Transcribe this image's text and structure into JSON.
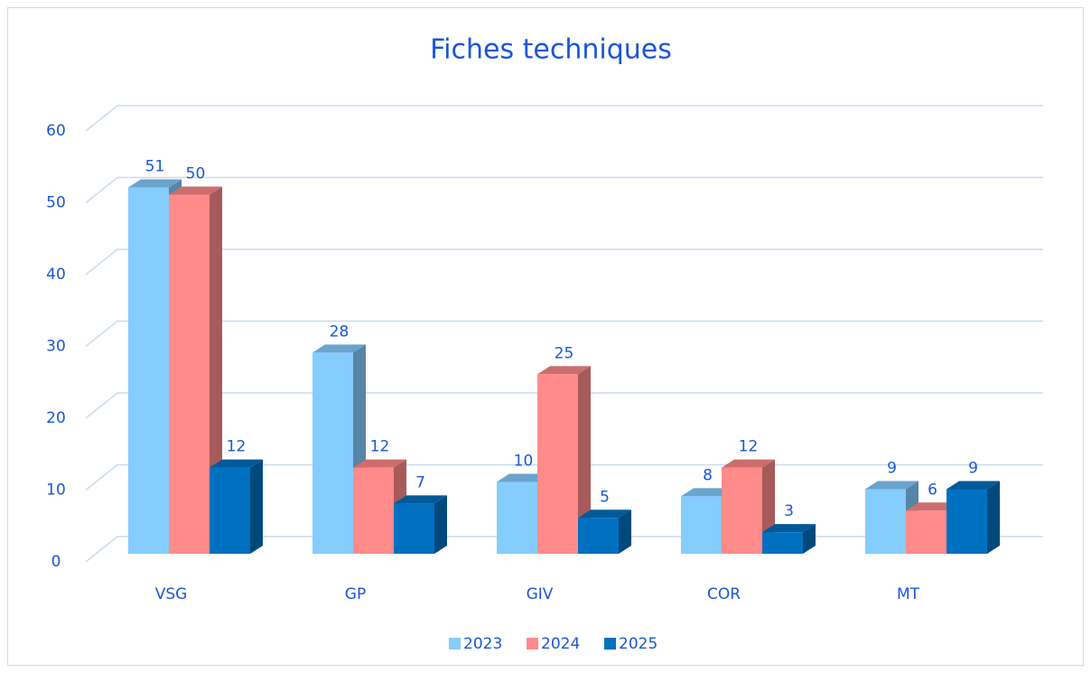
{
  "chart_data": {
    "type": "bar3d",
    "title": "Fiches techniques",
    "categories": [
      "VSG",
      "GP",
      "GIV",
      "COR",
      "MT"
    ],
    "series": [
      {
        "name": "2023",
        "color": "#85ccff",
        "values": [
          51,
          28,
          10,
          8,
          9
        ]
      },
      {
        "name": "2024",
        "color": "#ff8a8a",
        "values": [
          50,
          12,
          25,
          12,
          6
        ]
      },
      {
        "name": "2025",
        "color": "#0070c0",
        "values": [
          12,
          7,
          5,
          3,
          9
        ]
      }
    ],
    "ylim": [
      0,
      60
    ],
    "yticks": [
      0,
      10,
      20,
      30,
      40,
      50,
      60
    ],
    "grid": true,
    "legend": "bottom"
  }
}
